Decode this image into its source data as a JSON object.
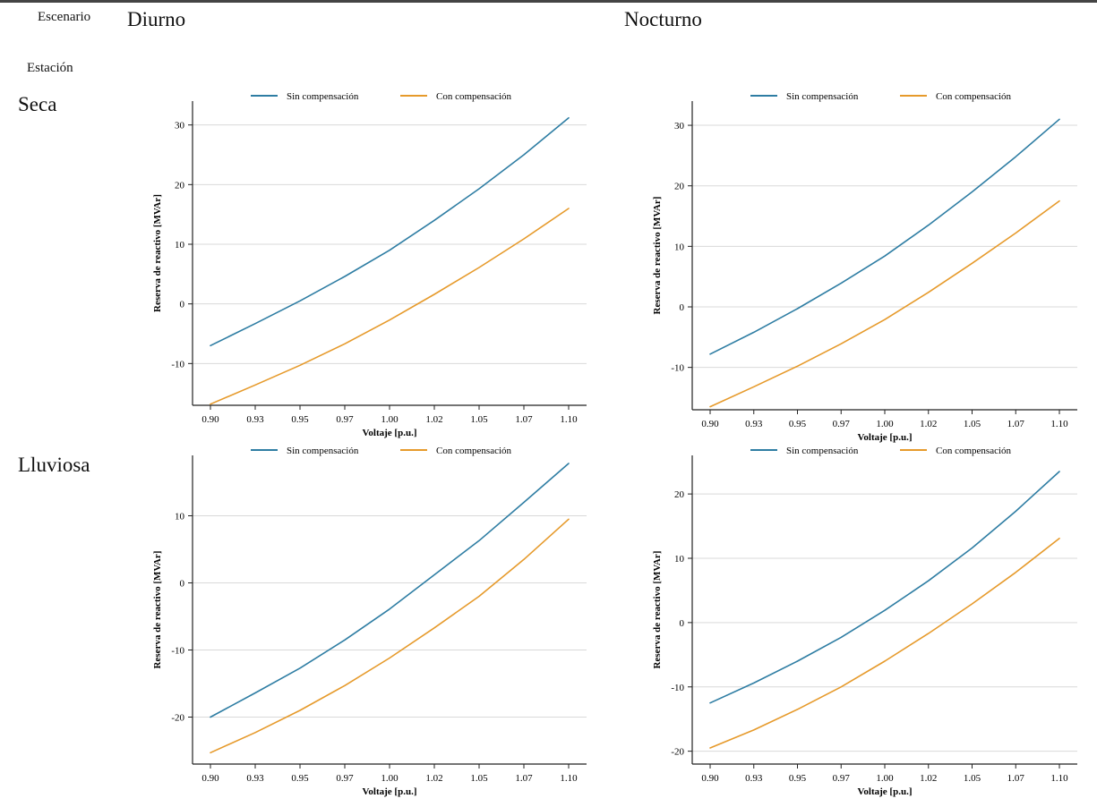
{
  "header": {
    "scenario_label": "Escenario",
    "station_label": "Estación",
    "columns": [
      "Diurno",
      "Nocturno"
    ],
    "rows": [
      "Seca",
      "Lluviosa"
    ]
  },
  "colors": {
    "series_1": "#2e7da3",
    "series_2": "#e69a2b",
    "grid": "#d9d9d9",
    "axis": "#222222"
  },
  "chart_data": [
    {
      "type": "line",
      "scenario": "Diurno",
      "station": "Seca",
      "xlabel": "Voltaje [p.u.]",
      "ylabel": "Reserva de reactivo [MVAr]",
      "xlim": [
        0.9,
        1.1
      ],
      "ylim": [
        -17,
        34
      ],
      "legend": "top-center",
      "xticks": [
        "0.90",
        "0.93",
        "0.95",
        "0.97",
        "1.00",
        "1.02",
        "1.05",
        "1.07",
        "1.10"
      ],
      "yticks": [
        "-10",
        "0",
        "10",
        "20",
        "30"
      ],
      "x": [
        0.9,
        0.925,
        0.95,
        0.975,
        1.0,
        1.025,
        1.05,
        1.075,
        1.1
      ],
      "series": [
        {
          "name": "Sin compensación",
          "values": [
            -7.0,
            -3.3,
            0.5,
            4.6,
            9.0,
            14.0,
            19.3,
            25.0,
            31.2
          ]
        },
        {
          "name": "Con compensación",
          "values": [
            -16.8,
            -13.6,
            -10.3,
            -6.7,
            -2.7,
            1.6,
            6.1,
            10.9,
            16.0
          ]
        }
      ]
    },
    {
      "type": "line",
      "scenario": "Nocturno",
      "station": "Seca",
      "xlabel": "Voltaje [p.u.]",
      "ylabel": "Reserva de reactivo [MVAr]",
      "xlim": [
        0.9,
        1.1
      ],
      "ylim": [
        -17,
        34
      ],
      "legend": "top-center",
      "xticks": [
        "0.90",
        "0.93",
        "0.95",
        "0.97",
        "1.00",
        "1.02",
        "1.05",
        "1.07",
        "1.10"
      ],
      "yticks": [
        "-10",
        "0",
        "10",
        "20",
        "30"
      ],
      "x": [
        0.9,
        0.925,
        0.95,
        0.975,
        1.0,
        1.025,
        1.05,
        1.075,
        1.1
      ],
      "series": [
        {
          "name": "Sin compensación",
          "values": [
            -7.8,
            -4.2,
            -0.3,
            3.9,
            8.4,
            13.5,
            19.0,
            24.8,
            31.0
          ]
        },
        {
          "name": "Con compensación",
          "values": [
            -16.5,
            -13.2,
            -9.8,
            -6.1,
            -2.1,
            2.4,
            7.2,
            12.2,
            17.5
          ]
        }
      ]
    },
    {
      "type": "line",
      "scenario": "Diurno",
      "station": "Lluviosa",
      "xlabel": "Voltaje [p.u.]",
      "ylabel": "Reserva de reactivo [MVAr]",
      "xlim": [
        0.9,
        1.1
      ],
      "ylim": [
        -27,
        19
      ],
      "legend": "top-center",
      "xticks": [
        "0.90",
        "0.93",
        "0.95",
        "0.97",
        "1.00",
        "1.02",
        "1.05",
        "1.07",
        "1.10"
      ],
      "yticks": [
        "-20",
        "-10",
        "0",
        "10"
      ],
      "x": [
        0.9,
        0.925,
        0.95,
        0.975,
        1.0,
        1.025,
        1.05,
        1.075,
        1.1
      ],
      "series": [
        {
          "name": "Sin compensación",
          "values": [
            -20.0,
            -16.4,
            -12.7,
            -8.5,
            -3.9,
            1.2,
            6.3,
            12.0,
            17.8
          ]
        },
        {
          "name": "Con compensación",
          "values": [
            -25.3,
            -22.3,
            -19.0,
            -15.3,
            -11.2,
            -6.7,
            -2.0,
            3.5,
            9.5
          ]
        }
      ]
    },
    {
      "type": "line",
      "scenario": "Nocturno",
      "station": "Lluviosa",
      "xlabel": "Voltaje [p.u.]",
      "ylabel": "Reserva de reactivo [MVAr]",
      "xlim": [
        0.9,
        1.1
      ],
      "ylim": [
        -22,
        26
      ],
      "legend": "top-center",
      "xticks": [
        "0.90",
        "0.93",
        "0.95",
        "0.97",
        "1.00",
        "1.02",
        "1.05",
        "1.07",
        "1.10"
      ],
      "yticks": [
        "-20",
        "-10",
        "0",
        "10",
        "20"
      ],
      "x": [
        0.9,
        0.925,
        0.95,
        0.975,
        1.0,
        1.025,
        1.05,
        1.075,
        1.1
      ],
      "series": [
        {
          "name": "Sin compensación",
          "values": [
            -12.5,
            -9.4,
            -6.0,
            -2.3,
            1.9,
            6.5,
            11.6,
            17.3,
            23.5
          ]
        },
        {
          "name": "Con compensación",
          "values": [
            -19.5,
            -16.7,
            -13.5,
            -10.0,
            -6.0,
            -1.7,
            2.9,
            7.8,
            13.1
          ]
        }
      ]
    }
  ]
}
